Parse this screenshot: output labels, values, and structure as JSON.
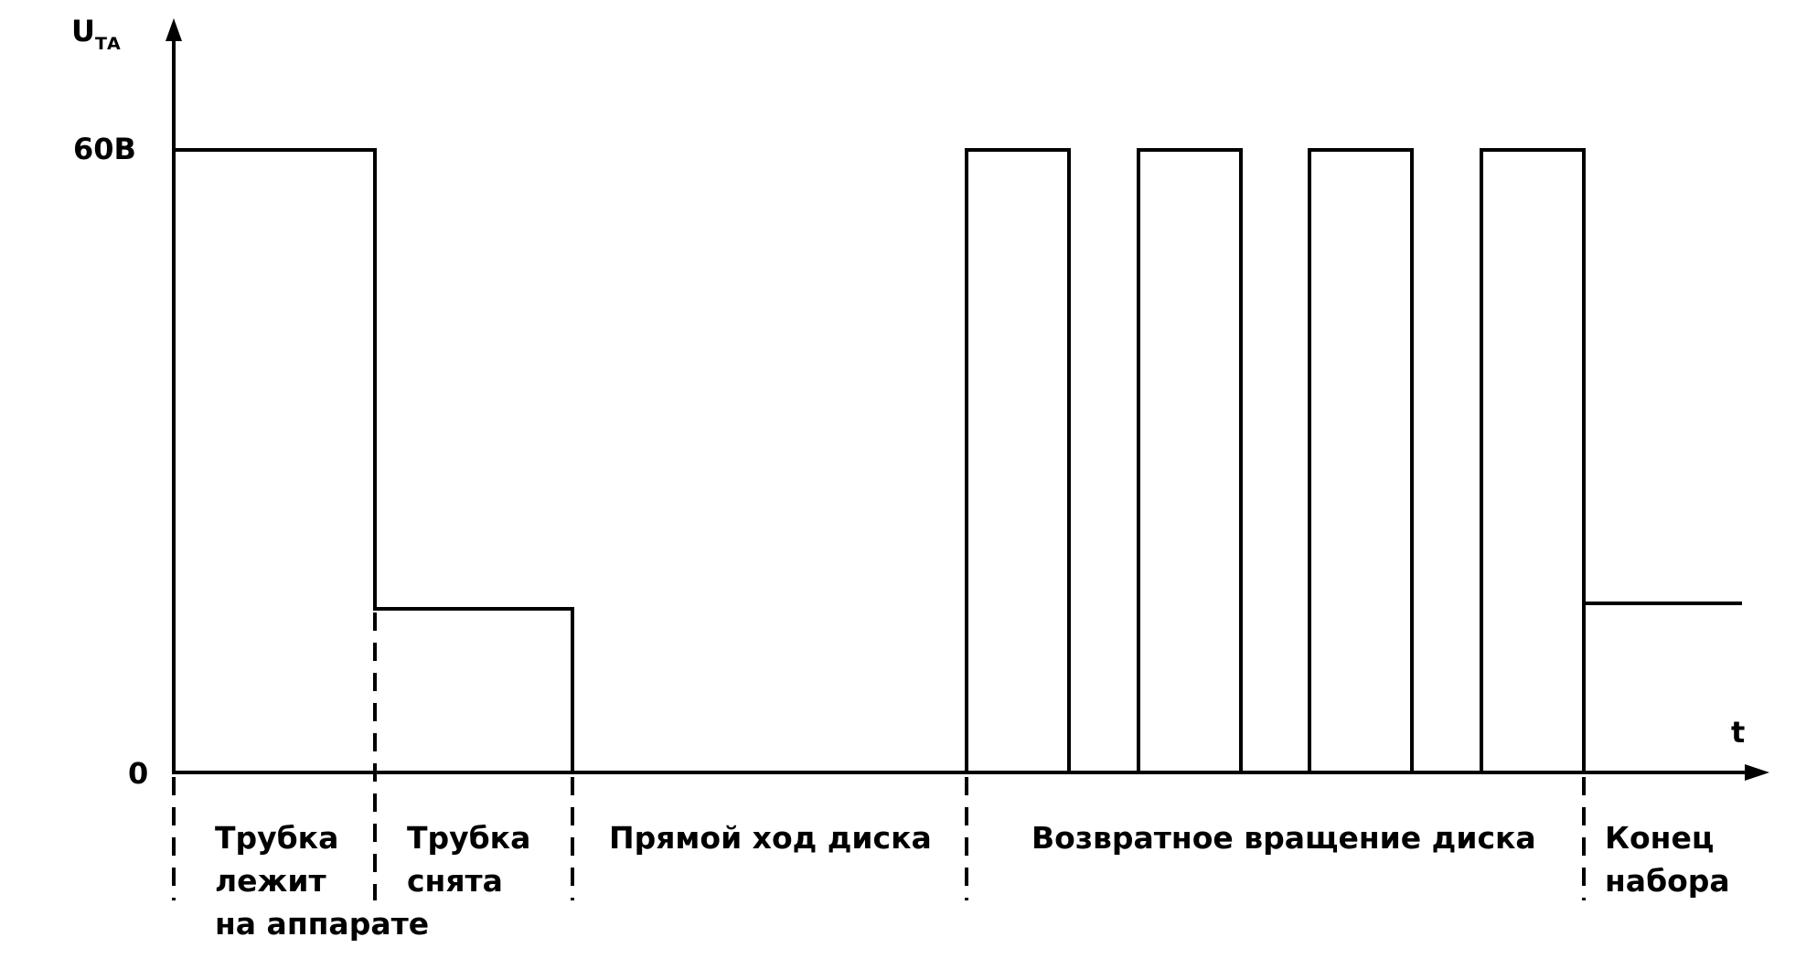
{
  "axes": {
    "y_label": "U",
    "y_label_sub": "ТА",
    "x_label": "t",
    "y_high_label": "60В",
    "y_zero_label": "0"
  },
  "sections": [
    {
      "lines": [
        "Трубка",
        "лежит",
        "на аппарате"
      ]
    },
    {
      "lines": [
        "Трубка",
        "снята"
      ]
    },
    {
      "lines": [
        "Прямой ход диска"
      ]
    },
    {
      "lines": [
        "Возвратное вращение диска"
      ]
    },
    {
      "lines": [
        "Конец",
        "набора"
      ]
    }
  ]
}
